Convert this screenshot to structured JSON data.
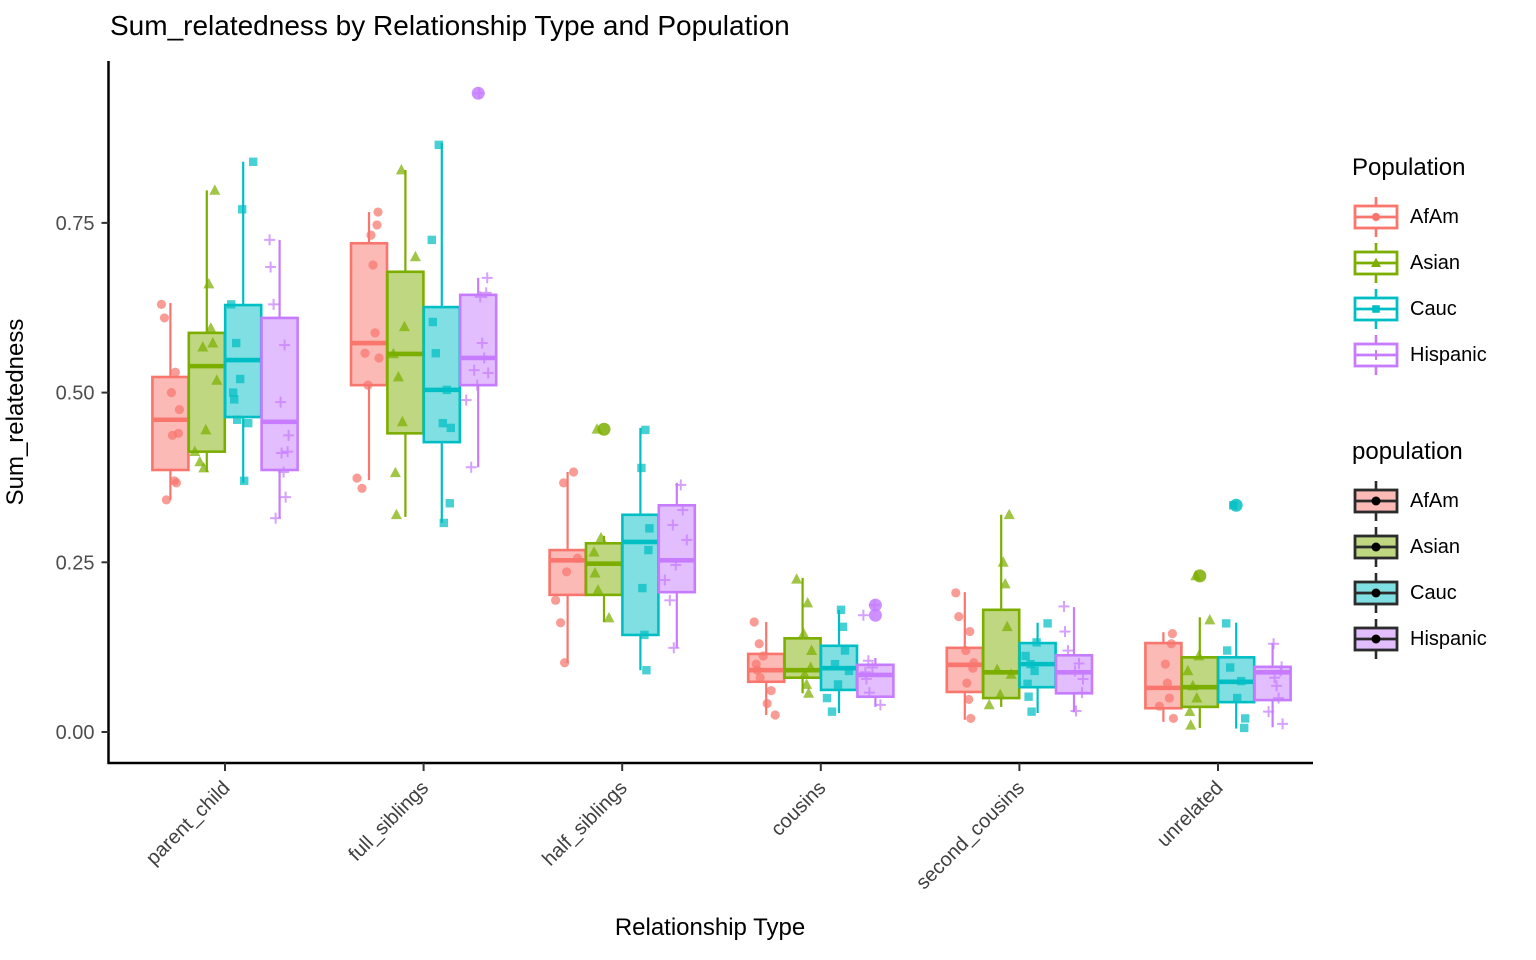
{
  "title": "Sum_relatedness by Relationship Type and Population",
  "x_axis": {
    "label": "Relationship Type",
    "categories": [
      "parent_child",
      "full_siblings",
      "half_siblings",
      "cousins",
      "second_cousins",
      "unrelated"
    ]
  },
  "y_axis": {
    "label": "Sum_relatedness",
    "ticks": [
      {
        "label": "0.00",
        "value": 0.0
      },
      {
        "label": "0.25",
        "value": 0.25
      },
      {
        "label": "0.50",
        "value": 0.5
      },
      {
        "label": "0.75",
        "value": 0.75
      }
    ]
  },
  "populations": [
    {
      "name": "AfAm",
      "color": "#F8766D",
      "fill": "#FBBAB6",
      "shape": "circle"
    },
    {
      "name": "Asian",
      "color": "#7CAE00",
      "fill": "#BED780",
      "shape": "triangle"
    },
    {
      "name": "Cauc",
      "color": "#00BFC4",
      "fill": "#80DFE2",
      "shape": "square"
    },
    {
      "name": "Hispanic",
      "color": "#C77CFF",
      "fill": "#E3BEFF",
      "shape": "plus"
    }
  ],
  "legends": [
    {
      "title": "Population",
      "style": "outline",
      "entries": [
        "AfAm",
        "Asian",
        "Cauc",
        "Hispanic"
      ]
    },
    {
      "title": "population",
      "style": "fill",
      "entries": [
        "AfAm",
        "Asian",
        "Cauc",
        "Hispanic"
      ]
    }
  ],
  "chart_data": {
    "type": "grouped_boxplot",
    "title": "Sum_relatedness by Relationship Type and Population",
    "xlabel": "Relationship Type",
    "ylabel": "Sum_relatedness",
    "ylim": [
      0,
      0.99
    ],
    "grid": false,
    "legend_position": "right",
    "categories": [
      "parent_child",
      "full_siblings",
      "half_siblings",
      "cousins",
      "second_cousins",
      "unrelated"
    ],
    "groups": [
      "AfAm",
      "Asian",
      "Cauc",
      "Hispanic"
    ],
    "boxes": [
      {
        "category": "parent_child",
        "population": "AfAm",
        "low": 0.342,
        "q1": 0.386,
        "median": 0.46,
        "q3": 0.523,
        "high": 0.632,
        "outliers": [],
        "points": [
          0.63,
          0.61,
          0.53,
          0.5,
          0.475,
          0.44,
          0.437,
          0.37,
          0.367,
          0.342
        ]
      },
      {
        "category": "parent_child",
        "population": "Asian",
        "low": 0.383,
        "q1": 0.413,
        "median": 0.539,
        "q3": 0.588,
        "high": 0.798,
        "outliers": [],
        "points": [
          0.798,
          0.66,
          0.595,
          0.573,
          0.567,
          0.518,
          0.445,
          0.413,
          0.398,
          0.389
        ]
      },
      {
        "category": "parent_child",
        "population": "Cauc",
        "low": 0.367,
        "q1": 0.464,
        "median": 0.548,
        "q3": 0.629,
        "high": 0.84,
        "outliers": [],
        "points": [
          0.84,
          0.77,
          0.63,
          0.573,
          0.52,
          0.5,
          0.49,
          0.46,
          0.455,
          0.37
        ]
      },
      {
        "category": "parent_child",
        "population": "Hispanic",
        "low": 0.315,
        "q1": 0.386,
        "median": 0.457,
        "q3": 0.61,
        "high": 0.725,
        "outliers": [],
        "points": [
          0.725,
          0.685,
          0.63,
          0.57,
          0.486,
          0.437,
          0.413,
          0.411,
          0.383,
          0.346,
          0.315
        ]
      },
      {
        "category": "full_siblings",
        "population": "AfAm",
        "low": 0.371,
        "q1": 0.511,
        "median": 0.573,
        "q3": 0.72,
        "high": 0.766,
        "outliers": [],
        "points": [
          0.766,
          0.747,
          0.732,
          0.688,
          0.588,
          0.558,
          0.551,
          0.511,
          0.374,
          0.359
        ]
      },
      {
        "category": "full_siblings",
        "population": "Asian",
        "low": 0.317,
        "q1": 0.44,
        "median": 0.557,
        "q3": 0.678,
        "high": 0.828,
        "outliers": [],
        "points": [
          0.828,
          0.7,
          0.597,
          0.557,
          0.523,
          0.457,
          0.382,
          0.32
        ]
      },
      {
        "category": "full_siblings",
        "population": "Cauc",
        "low": 0.308,
        "q1": 0.427,
        "median": 0.504,
        "q3": 0.626,
        "high": 0.868,
        "outliers": [],
        "points": [
          0.865,
          0.725,
          0.604,
          0.558,
          0.504,
          0.455,
          0.448,
          0.337,
          0.308
        ]
      },
      {
        "category": "full_siblings",
        "population": "Hispanic",
        "low": 0.39,
        "q1": 0.511,
        "median": 0.551,
        "q3": 0.644,
        "high": 0.669,
        "outliers": [
          0.941
        ],
        "points": [
          0.941,
          0.669,
          0.647,
          0.641,
          0.573,
          0.551,
          0.533,
          0.529,
          0.511,
          0.489,
          0.39
        ]
      },
      {
        "category": "half_siblings",
        "population": "AfAm",
        "low": 0.102,
        "q1": 0.202,
        "median": 0.253,
        "q3": 0.268,
        "high": 0.383,
        "outliers": [],
        "points": [
          0.383,
          0.367,
          0.256,
          0.236,
          0.194,
          0.161,
          0.102
        ]
      },
      {
        "category": "half_siblings",
        "population": "Asian",
        "low": 0.162,
        "q1": 0.202,
        "median": 0.248,
        "q3": 0.278,
        "high": 0.289,
        "outliers": [
          0.446
        ],
        "points": [
          0.446,
          0.286,
          0.265,
          0.234,
          0.209,
          0.168
        ]
      },
      {
        "category": "half_siblings",
        "population": "Cauc",
        "low": 0.091,
        "q1": 0.143,
        "median": 0.28,
        "q3": 0.32,
        "high": 0.448,
        "outliers": [],
        "points": [
          0.445,
          0.389,
          0.3,
          0.268,
          0.212,
          0.143,
          0.091
        ]
      },
      {
        "category": "half_siblings",
        "population": "Hispanic",
        "low": 0.124,
        "q1": 0.206,
        "median": 0.253,
        "q3": 0.334,
        "high": 0.367,
        "outliers": [],
        "points": [
          0.364,
          0.327,
          0.305,
          0.283,
          0.246,
          0.224,
          0.194,
          0.124
        ]
      },
      {
        "category": "cousins",
        "population": "AfAm",
        "low": 0.025,
        "q1": 0.074,
        "median": 0.091,
        "q3": 0.115,
        "high": 0.162,
        "outliers": [],
        "points": [
          0.162,
          0.13,
          0.112,
          0.1,
          0.091,
          0.08,
          0.061,
          0.042,
          0.025
        ]
      },
      {
        "category": "cousins",
        "population": "Asian",
        "low": 0.057,
        "q1": 0.08,
        "median": 0.091,
        "q3": 0.138,
        "high": 0.227,
        "outliers": [],
        "points": [
          0.225,
          0.19,
          0.145,
          0.12,
          0.095,
          0.085,
          0.07,
          0.057
        ]
      },
      {
        "category": "cousins",
        "population": "Cauc",
        "low": 0.028,
        "q1": 0.062,
        "median": 0.094,
        "q3": 0.127,
        "high": 0.18,
        "outliers": [],
        "points": [
          0.18,
          0.155,
          0.12,
          0.1,
          0.09,
          0.07,
          0.05,
          0.03
        ]
      },
      {
        "category": "cousins",
        "population": "Hispanic",
        "low": 0.037,
        "q1": 0.052,
        "median": 0.084,
        "q3": 0.099,
        "high": 0.109,
        "outliers": [
          0.187,
          0.172
        ],
        "points": [
          0.187,
          0.172,
          0.105,
          0.095,
          0.088,
          0.078,
          0.058,
          0.04
        ]
      },
      {
        "category": "second_cousins",
        "population": "AfAm",
        "low": 0.018,
        "q1": 0.059,
        "median": 0.099,
        "q3": 0.124,
        "high": 0.206,
        "outliers": [],
        "points": [
          0.205,
          0.17,
          0.148,
          0.12,
          0.102,
          0.094,
          0.072,
          0.048,
          0.02
        ]
      },
      {
        "category": "second_cousins",
        "population": "Asian",
        "low": 0.037,
        "q1": 0.05,
        "median": 0.088,
        "q3": 0.18,
        "high": 0.32,
        "outliers": [],
        "points": [
          0.32,
          0.25,
          0.218,
          0.155,
          0.092,
          0.085,
          0.055,
          0.04
        ]
      },
      {
        "category": "second_cousins",
        "population": "Cauc",
        "low": 0.028,
        "q1": 0.066,
        "median": 0.1,
        "q3": 0.131,
        "high": 0.161,
        "outliers": [],
        "points": [
          0.16,
          0.132,
          0.112,
          0.1,
          0.09,
          0.071,
          0.052,
          0.03
        ]
      },
      {
        "category": "second_cousins",
        "population": "Hispanic",
        "low": 0.029,
        "q1": 0.057,
        "median": 0.088,
        "q3": 0.113,
        "high": 0.184,
        "outliers": [],
        "points": [
          0.185,
          0.148,
          0.12,
          0.101,
          0.09,
          0.078,
          0.058,
          0.031
        ]
      },
      {
        "category": "unrelated",
        "population": "AfAm",
        "low": 0.015,
        "q1": 0.035,
        "median": 0.065,
        "q3": 0.131,
        "high": 0.147,
        "outliers": [],
        "points": [
          0.145,
          0.13,
          0.1,
          0.072,
          0.05,
          0.038,
          0.02
        ]
      },
      {
        "category": "unrelated",
        "population": "Asian",
        "low": 0.006,
        "q1": 0.037,
        "median": 0.066,
        "q3": 0.11,
        "high": 0.169,
        "outliers": [
          0.23
        ],
        "points": [
          0.23,
          0.165,
          0.112,
          0.09,
          0.068,
          0.05,
          0.03,
          0.01
        ]
      },
      {
        "category": "unrelated",
        "population": "Cauc",
        "low": 0.005,
        "q1": 0.044,
        "median": 0.074,
        "q3": 0.11,
        "high": 0.161,
        "outliers": [
          0.334
        ],
        "points": [
          0.334,
          0.16,
          0.12,
          0.095,
          0.075,
          0.05,
          0.02,
          0.006
        ]
      },
      {
        "category": "unrelated",
        "population": "Hispanic",
        "low": 0.007,
        "q1": 0.047,
        "median": 0.088,
        "q3": 0.096,
        "high": 0.131,
        "outliers": [],
        "points": [
          0.13,
          0.096,
          0.09,
          0.08,
          0.068,
          0.05,
          0.03,
          0.012
        ]
      }
    ]
  }
}
